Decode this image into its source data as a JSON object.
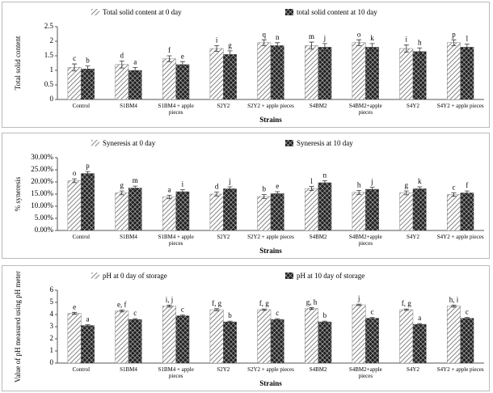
{
  "chart_data": [
    {
      "type": "bar",
      "ylabel": "Total solid content",
      "xlabel": "Strains",
      "categories": [
        "Control",
        "S1BM4",
        "S1BM4 + apple pieces",
        "S2Y2",
        "S2Y2 + apple pieces",
        "S4BM2",
        "S4BM2+apple pieces",
        "S4Y2",
        "S4Y2 + apple pieces"
      ],
      "series": [
        {
          "name": "Total solid content at 0 day",
          "color": "#777777",
          "values": [
            1.1,
            1.2,
            1.4,
            1.75,
            1.95,
            1.85,
            1.95,
            1.75,
            1.95
          ],
          "errors": [
            0.12,
            0.12,
            0.1,
            0.1,
            0.1,
            0.12,
            0.1,
            0.12,
            0.1
          ],
          "letters": [
            "c",
            "d",
            "f",
            "i",
            "q",
            "m",
            "o",
            "i",
            "p"
          ]
        },
        {
          "name": "total solid content at 10 day",
          "color": "#222222",
          "values": [
            1.05,
            1.0,
            1.2,
            1.55,
            1.85,
            1.8,
            1.8,
            1.65,
            1.8
          ],
          "errors": [
            0.1,
            0.1,
            0.1,
            0.12,
            0.1,
            0.12,
            0.12,
            0.12,
            0.1
          ],
          "letters": [
            "b",
            "a",
            "e",
            "g",
            "n",
            "j",
            "k",
            "h",
            "l"
          ]
        }
      ],
      "ylim": [
        0,
        2.5
      ],
      "yticks": [
        0,
        0.5,
        1,
        1.5,
        2,
        2.5
      ]
    },
    {
      "type": "bar",
      "ylabel": "% syneresis",
      "xlabel": "Strains",
      "categories": [
        "Control",
        "S1BM4",
        "S1BM4 + apple pieces",
        "S2Y2",
        "S2Y2 + apple pieces",
        "S4BM2",
        "S4BM2+apple pieces",
        "S4Y2",
        "S4Y2 + apple pieces"
      ],
      "series": [
        {
          "name": "Syneresis at 0 day",
          "color": "#777777",
          "values": [
            20.5,
            15.5,
            13.8,
            15,
            14,
            17.3,
            15.7,
            15.5,
            14.8
          ],
          "errors": [
            0.8,
            0.8,
            0.7,
            0.8,
            0.8,
            0.8,
            0.8,
            0.8,
            0.7
          ],
          "letters": [
            "o",
            "g",
            "a",
            "d",
            "b",
            "l",
            "h",
            "g",
            "c"
          ]
        },
        {
          "name": "Syneresis at 10 day",
          "color": "#222222",
          "values": [
            23.5,
            17.5,
            16,
            17.2,
            15.2,
            19.7,
            17,
            17.2,
            15.5
          ],
          "errors": [
            0.8,
            0.8,
            0.8,
            0.8,
            0.8,
            0.8,
            0.8,
            0.8,
            0.8
          ],
          "letters": [
            "p",
            "m",
            "i",
            "j",
            "e",
            "n",
            "j",
            "k",
            "f"
          ]
        }
      ],
      "ylim": [
        0,
        30
      ],
      "yticks": [
        {
          "value": 0,
          "label": "0.00%"
        },
        {
          "value": 5,
          "label": "5.00%"
        },
        {
          "value": 10,
          "label": "10.00%"
        },
        {
          "value": 15,
          "label": "15.00%"
        },
        {
          "value": 20,
          "label": "20.00%"
        },
        {
          "value": 25,
          "label": "25.00%"
        },
        {
          "value": 30,
          "label": "30.00%"
        }
      ]
    },
    {
      "type": "bar",
      "ylabel": "Value of pH measured using pH meter",
      "xlabel": "Strains",
      "categories": [
        "Control",
        "S1BM4",
        "S1BM4 + apple pieces",
        "S2Y2",
        "S2Y2 + apple pieces",
        "S4BM2",
        "S4BM2+apple pieces",
        "S4Y2",
        "S4Y2 + apple pieces"
      ],
      "series": [
        {
          "name": "pH at 0 day of storage",
          "color": "#777777",
          "values": [
            4.1,
            4.3,
            4.7,
            4.4,
            4.4,
            4.5,
            4.8,
            4.4,
            4.7
          ],
          "errors": [
            0.08,
            0.08,
            0.08,
            0.08,
            0.06,
            0.08,
            0.06,
            0.06,
            0.08
          ],
          "letters": [
            "e",
            "e, f",
            "i, j",
            "f, g",
            "f, g",
            "g, h",
            "j",
            "f, g",
            "h, i"
          ]
        },
        {
          "name": "pH at 10 day of storage",
          "color": "#222222",
          "values": [
            3.1,
            3.6,
            3.9,
            3.4,
            3.6,
            3.4,
            3.7,
            3.2,
            3.7
          ],
          "errors": [
            0.06,
            0.06,
            0.06,
            0.06,
            0.06,
            0.06,
            0.06,
            0.06,
            0.06
          ],
          "letters": [
            "a",
            "c",
            "c",
            "b",
            "c",
            "b",
            "c",
            "a",
            "c"
          ]
        }
      ],
      "ylim": [
        0,
        6
      ],
      "yticks": [
        0,
        1,
        2,
        3,
        4,
        5,
        6
      ]
    }
  ]
}
